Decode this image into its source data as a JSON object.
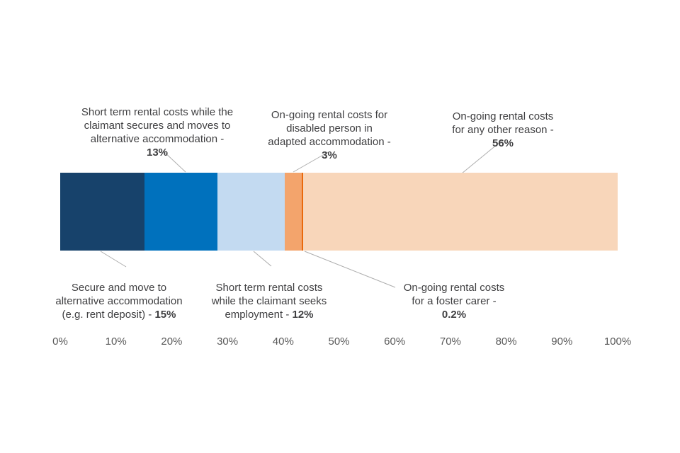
{
  "chart_data": {
    "type": "bar",
    "orientation": "horizontal-stacked",
    "title": "",
    "categories": [
      "Secure and move to alternative accommodation (e.g. rent deposit)",
      "Short term rental costs while the claimant secures and moves to alternative accommodation",
      "Short term rental costs while the claimant seeks employment",
      "On-going rental costs for disabled person in adapted accommodation",
      "On-going rental costs for a foster carer",
      "On-going rental costs for any other reason"
    ],
    "values": [
      15,
      13,
      12,
      3,
      0.2,
      56
    ],
    "value_labels": [
      "15%",
      "13%",
      "12%",
      "3%",
      "0.2%",
      "56%"
    ],
    "colors": [
      "#17426B",
      "#0071BD",
      "#C3DAF1",
      "#F3A46C",
      "#E9690C",
      "#F8D6BA"
    ],
    "xlim": [
      0,
      100
    ],
    "x_ticks": [
      "0%",
      "10%",
      "20%",
      "30%",
      "40%",
      "50%",
      "60%",
      "70%",
      "80%",
      "90%",
      "100%"
    ],
    "grid": false,
    "legend": false
  },
  "callouts": {
    "top": [
      {
        "text": "Short term rental costs while the\nclaimant secures and moves to\nalternative accommodation -",
        "pct": "13%"
      },
      {
        "text": "On-going rental costs for\ndisabled person in\nadapted accommodation -",
        "pct": "3%"
      },
      {
        "text": "On-going rental costs\nfor any other reason -",
        "pct": "56%"
      }
    ],
    "bottom": [
      {
        "text": "Secure and move to\nalternative accommodation\n(e.g. rent deposit) - ",
        "pct": "15%"
      },
      {
        "text": "Short term rental costs\nwhile the claimant seeks\nemployment - ",
        "pct": "12%"
      },
      {
        "text": "On-going rental costs\nfor a foster carer -",
        "pct": "0.2%"
      }
    ]
  },
  "colors": {
    "label_text": "#404042",
    "axis_text": "#595959",
    "leader_line": "#ADADAD"
  }
}
